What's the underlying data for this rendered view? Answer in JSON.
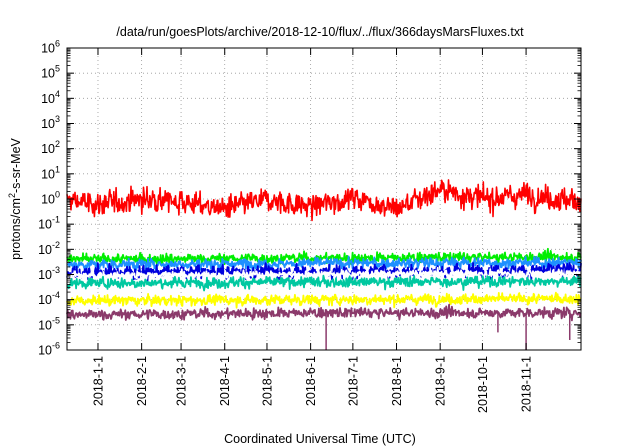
{
  "chart_data": {
    "type": "line",
    "title": "/data/run/goesPlots/archive/2018-12-10/flux/../flux/366daysMarsFluxes.txt",
    "xlabel": "Coordinated Universal Time (UTC)",
    "ylabel": {
      "pre": "protons/cm",
      "sup": "2",
      "post": "-s-sr-MeV"
    },
    "y_scale": "log",
    "ylim": [
      1e-06,
      1000000.0
    ],
    "xlim": [
      "2017-12-10",
      "2018-12-10"
    ],
    "grid": true,
    "y_ticks": [
      {
        "value": 1e-06,
        "base": "10",
        "exp": "-6"
      },
      {
        "value": 1e-05,
        "base": "10",
        "exp": "-5"
      },
      {
        "value": 0.0001,
        "base": "10",
        "exp": "-4"
      },
      {
        "value": 0.001,
        "base": "10",
        "exp": "-3"
      },
      {
        "value": 0.01,
        "base": "10",
        "exp": "-2"
      },
      {
        "value": 0.1,
        "base": "10",
        "exp": "-1"
      },
      {
        "value": 1.0,
        "base": "10",
        "exp": "0"
      },
      {
        "value": 10.0,
        "base": "10",
        "exp": "1"
      },
      {
        "value": 100.0,
        "base": "10",
        "exp": "2"
      },
      {
        "value": 1000.0,
        "base": "10",
        "exp": "3"
      },
      {
        "value": 10000.0,
        "base": "10",
        "exp": "4"
      },
      {
        "value": 100000.0,
        "base": "10",
        "exp": "5"
      },
      {
        "value": 1000000.0,
        "base": "10",
        "exp": "6"
      }
    ],
    "x_ticks": [
      {
        "date": "2018-01-01",
        "label": "2018-1-1"
      },
      {
        "date": "2018-02-01",
        "label": "2018-2-1"
      },
      {
        "date": "2018-03-01",
        "label": "2018-3-1"
      },
      {
        "date": "2018-04-01",
        "label": "2018-4-1"
      },
      {
        "date": "2018-05-01",
        "label": "2018-5-1"
      },
      {
        "date": "2018-06-01",
        "label": "2018-6-1"
      },
      {
        "date": "2018-07-01",
        "label": "2018-7-1"
      },
      {
        "date": "2018-08-01",
        "label": "2018-8-1"
      },
      {
        "date": "2018-09-01",
        "label": "2018-9-1"
      },
      {
        "date": "2018-10-01",
        "label": "2018-10-1"
      },
      {
        "date": "2018-11-01",
        "label": "2018-11-1"
      }
    ],
    "series": [
      {
        "color": "#ff0000",
        "x": [
          "2017-12-10",
          "2018-01-01",
          "2018-02-01",
          "2018-03-01",
          "2018-04-01",
          "2018-05-01",
          "2018-06-01",
          "2018-07-01",
          "2018-08-01",
          "2018-09-01",
          "2018-10-01",
          "2018-11-01",
          "2018-12-10"
        ],
        "y": [
          0.9,
          0.6,
          1.0,
          0.8,
          0.4,
          0.9,
          0.5,
          1.2,
          0.4,
          2.5,
          1.0,
          1.5,
          0.8
        ],
        "noise_decades": 0.35
      },
      {
        "color": "#00ee00",
        "x": [
          "2017-12-10",
          "2018-06-01",
          "2018-12-10"
        ],
        "y": [
          0.004,
          0.0045,
          0.005
        ],
        "noise_decades": 0.15
      },
      {
        "color": "#1e90ff",
        "x": [
          "2017-12-10",
          "2018-06-01",
          "2018-12-10"
        ],
        "y": [
          0.0025,
          0.0028,
          0.003
        ],
        "noise_decades": 0.15
      },
      {
        "color": "#0000dd",
        "x": [
          "2017-12-10",
          "2018-06-01",
          "2018-12-10"
        ],
        "y": [
          0.0012,
          0.0013,
          0.0015
        ],
        "noise_decades": 0.2
      },
      {
        "color": "#ffffff",
        "x": [
          "2017-12-10",
          "2018-06-01",
          "2018-12-10"
        ],
        "y": [
          0.0009,
          0.001,
          0.0011
        ],
        "noise_decades": 0.12
      },
      {
        "color": "#00c8a0",
        "x": [
          "2017-12-10",
          "2018-06-01",
          "2018-12-10"
        ],
        "y": [
          0.00045,
          0.0005,
          0.00055
        ],
        "noise_decades": 0.15
      },
      {
        "color": "#ffff00",
        "x": [
          "2017-12-10",
          "2018-06-01",
          "2018-12-10"
        ],
        "y": [
          9e-05,
          0.0001,
          0.00011
        ],
        "noise_decades": 0.15
      },
      {
        "color": "#8b3a6b",
        "x": [
          "2017-12-10",
          "2018-06-01",
          "2018-12-10"
        ],
        "y": [
          2.5e-05,
          3e-05,
          3e-05
        ],
        "noise_decades": 0.15
      }
    ],
    "dips": [
      {
        "date": "2018-06-12",
        "y": 1e-06
      },
      {
        "date": "2018-11-01",
        "y": 1e-06
      },
      {
        "date": "2018-10-12",
        "y": 5e-06
      },
      {
        "date": "2018-12-02",
        "y": 2.5e-06
      }
    ]
  }
}
